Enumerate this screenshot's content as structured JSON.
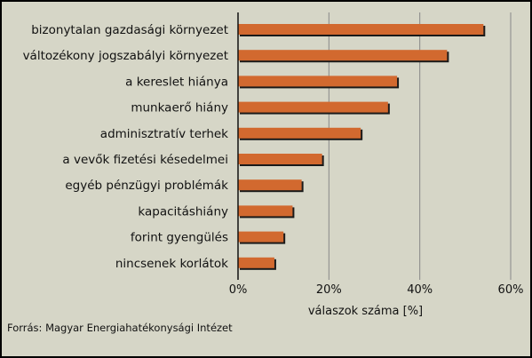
{
  "chart_data": {
    "type": "bar",
    "orientation": "horizontal",
    "categories": [
      "bizonytalan gazdasági környezet",
      "változékony jogszabályi környezet",
      "a kereslet hiánya",
      "munkaerő hiány",
      "adminisztratív terhek",
      "a vevők fizetési késedelmei",
      "egyéb pénzügyi problémák",
      "kapacitáshiány",
      "forint gyengülés",
      "nincsenek korlátok"
    ],
    "values": [
      54,
      46,
      35,
      33,
      27,
      18.5,
      14,
      12,
      10,
      8
    ],
    "xlim": [
      0,
      60
    ],
    "xticks": [
      0,
      20,
      40,
      60
    ],
    "xtick_labels": [
      "0%",
      "20%",
      "40%",
      "60%"
    ],
    "xlabel": "válaszok száma [%]",
    "grid": true,
    "bar_color": "#d2692f",
    "bar_shadow_color": "#1a1a1a",
    "background_color": "#d6d6c7"
  },
  "source_text": "Forrás: Magyar Energiahatékonysági Intézet"
}
